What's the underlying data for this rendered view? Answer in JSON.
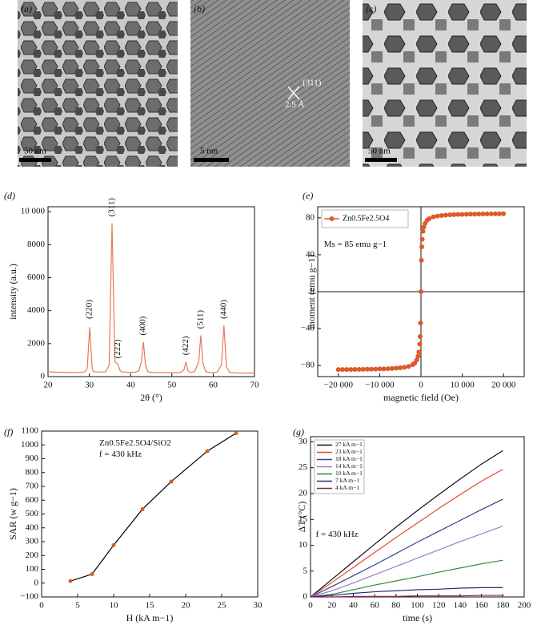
{
  "images": [
    {
      "panel": "(a)",
      "scale_bar": "50 nm"
    },
    {
      "panel": "(b)",
      "scale_bar": "5 nm",
      "annotations": [
        "(311)",
        "2.5 Å"
      ]
    },
    {
      "panel": "(c)",
      "scale_bar": "50 nm"
    }
  ],
  "chart_data": [
    {
      "type": "line",
      "panel": "(d)",
      "xlabel": "2θ (°)",
      "ylabel": "intensity (a.u.)",
      "color": "#e8775f",
      "x": [
        20,
        21,
        22,
        23,
        24,
        25,
        26,
        27,
        28,
        29,
        29.5,
        30.1,
        30.7,
        31,
        32,
        33,
        34,
        34.8,
        35.5,
        36.2,
        36.9,
        37.5,
        38,
        39,
        40,
        41,
        42,
        42.6,
        43.1,
        43.6,
        44.2,
        45,
        46,
        47,
        48,
        49,
        50,
        51,
        52,
        52.9,
        53.4,
        53.9,
        54.5,
        55.5,
        56.5,
        57,
        57.5,
        58.2,
        59,
        60,
        61,
        62,
        62.6,
        63.2,
        64,
        65,
        66,
        67,
        68,
        69,
        70
      ],
      "values": [
        300,
        280,
        260,
        270,
        250,
        260,
        240,
        250,
        260,
        300,
        500,
        3000,
        500,
        300,
        280,
        270,
        300,
        700,
        9300,
        900,
        750,
        350,
        280,
        260,
        250,
        260,
        350,
        900,
        2100,
        700,
        300,
        250,
        240,
        250,
        240,
        230,
        240,
        230,
        250,
        400,
        900,
        350,
        250,
        300,
        900,
        2500,
        800,
        300,
        250,
        240,
        280,
        700,
        3100,
        600,
        250,
        230,
        220,
        220,
        210,
        220,
        200
      ],
      "xlim": [
        20,
        70
      ],
      "xticks": [
        20,
        30,
        40,
        50,
        60,
        70
      ],
      "ylim": [
        0,
        10300
      ],
      "yticks": [
        0,
        2000,
        4000,
        6000,
        8000,
        {
          "value": 10000,
          "label": "10 000"
        }
      ],
      "annotation_rotation": -90,
      "annotations": [
        {
          "text": "(220)",
          "x": 30.1,
          "y": 3500
        },
        {
          "text": "(311)",
          "x": 35.5,
          "y": 9700
        },
        {
          "text": "(222)",
          "x": 37,
          "y": 1100
        },
        {
          "text": "(400)",
          "x": 43.1,
          "y": 2500
        },
        {
          "text": "(422)",
          "x": 53.4,
          "y": 1300
        },
        {
          "text": "(511)",
          "x": 57,
          "y": 2900
        },
        {
          "text": "(440)",
          "x": 62.6,
          "y": 3500
        }
      ]
    },
    {
      "type": "scatter",
      "panel": "(e)",
      "xlabel": "magnetic field (Oe)",
      "ylabel": "moment (emu g−1)",
      "zero_lines": true,
      "legend": "upper left",
      "series": [
        {
          "name": "Zn0.5Fe2.5O4",
          "color": "#dd5a2c",
          "x": [
            -20000,
            -19000,
            -18000,
            -17000,
            -16000,
            -15000,
            -14000,
            -13000,
            -12000,
            -11000,
            -10000,
            -9000,
            -8000,
            -7000,
            -6000,
            -5000,
            -4000,
            -3000,
            -2000,
            -1500,
            -1000,
            -700,
            -500,
            -300,
            -200,
            -100,
            0,
            100,
            200,
            300,
            500,
            700,
            1000,
            1500,
            2000,
            3000,
            4000,
            5000,
            6000,
            7000,
            8000,
            9000,
            10000,
            11000,
            12000,
            13000,
            14000,
            15000,
            16000,
            17000,
            18000,
            19000,
            20000
          ],
          "values": [
            -84.4,
            -84.3,
            -84.3,
            -84.3,
            -84.2,
            -84.2,
            -84.1,
            -84.0,
            -84.0,
            -83.9,
            -83.7,
            -83.6,
            -83.4,
            -83.2,
            -82.9,
            -82.5,
            -81.9,
            -81.0,
            -79.1,
            -77.3,
            -73.9,
            -70.0,
            -65.4,
            -56.7,
            -48.6,
            -34.0,
            0,
            34.0,
            48.6,
            56.7,
            65.4,
            70.0,
            73.9,
            77.3,
            79.1,
            81.0,
            81.9,
            82.5,
            82.9,
            83.2,
            83.4,
            83.6,
            83.7,
            83.9,
            84.0,
            84.0,
            84.1,
            84.2,
            84.2,
            84.3,
            84.3,
            84.3,
            84.4
          ]
        }
      ],
      "xlim": [
        -25000,
        25000
      ],
      "xticks": [
        {
          "value": -20000,
          "label": "−20 000"
        },
        {
          "value": -10000,
          "label": "−10 000"
        },
        0,
        {
          "value": 10000,
          "label": "10 000"
        },
        {
          "value": 20000,
          "label": "20 000"
        }
      ],
      "ylim": [
        -92,
        92
      ],
      "yticks": [
        {
          "value": -80,
          "label": "−80"
        },
        {
          "value": -40,
          "label": "−40"
        },
        0,
        40,
        80
      ],
      "annotations": [
        {
          "text": "Ms = 85 emu g−1",
          "x": -23500,
          "y": 51
        }
      ]
    },
    {
      "type": "line",
      "panel": "(f)",
      "xlabel": "H (kA m−1)",
      "ylabel": "SAR (w g−1)",
      "color": "#000000",
      "marker_color": "#dd5a2c",
      "x": [
        4,
        7,
        10,
        14,
        18,
        23,
        27
      ],
      "values": [
        15,
        65,
        275,
        535,
        735,
        955,
        1085
      ],
      "xlim": [
        0,
        30
      ],
      "xticks": [
        0,
        5,
        10,
        15,
        20,
        25,
        30
      ],
      "ylim": [
        -100,
        1100
      ],
      "yticks": [
        {
          "value": -100,
          "label": "−100"
        },
        0,
        100,
        200,
        300,
        400,
        500,
        600,
        700,
        800,
        900,
        1000,
        1100
      ],
      "annotations": [
        {
          "text": "Zn0.5Fe2.5O4/SiO2",
          "x": 8,
          "y": 1010
        },
        {
          "text": "f = 430 kHz",
          "x": 8,
          "y": 930
        }
      ]
    },
    {
      "type": "line",
      "panel": "(g)",
      "xlabel": "time (s)",
      "ylabel": "ΔT (°C)",
      "legend": "upper left",
      "x": [
        0,
        20,
        40,
        60,
        80,
        100,
        120,
        140,
        160,
        180
      ],
      "series": [
        {
          "name": "27 kA m−1",
          "color": "#111111",
          "values": [
            0,
            3.4,
            6.8,
            10.2,
            13.5,
            16.7,
            19.8,
            22.8,
            25.7,
            28.3
          ]
        },
        {
          "name": "23 kA m−1",
          "color": "#e8472a",
          "values": [
            0,
            2.8,
            5.7,
            8.6,
            11.5,
            14.3,
            17.1,
            19.8,
            22.4,
            24.7
          ]
        },
        {
          "name": "18 kA m−1",
          "color": "#3b3f8f",
          "values": [
            0,
            2.0,
            4.1,
            6.2,
            8.4,
            10.6,
            12.7,
            14.8,
            16.9,
            18.9
          ]
        },
        {
          "name": "14 kA m−1",
          "color": "#a57ac8",
          "values": [
            0,
            1.2,
            2.7,
            4.3,
            5.9,
            7.5,
            9.1,
            10.7,
            12.2,
            13.7
          ]
        },
        {
          "name": "10 kA m−1",
          "color": "#2e8b3e",
          "values": [
            0,
            0.5,
            1.4,
            2.3,
            3.1,
            3.9,
            4.8,
            5.6,
            6.4,
            7.1
          ]
        },
        {
          "name": "7 kA m−1",
          "color": "#2a2a7a",
          "values": [
            0,
            0.3,
            0.7,
            1.0,
            1.2,
            1.4,
            1.5,
            1.7,
            1.8,
            1.8
          ]
        },
        {
          "name": "4 kA m−1",
          "color": "#8b2252",
          "values": [
            0,
            0,
            0.1,
            0.1,
            0.1,
            0.2,
            0.2,
            0.2,
            0.3,
            0.3
          ]
        }
      ],
      "xlim": [
        0,
        200
      ],
      "xticks": [
        0,
        20,
        40,
        60,
        80,
        100,
        120,
        140,
        160,
        180,
        200
      ],
      "ylim": [
        0,
        31
      ],
      "yticks": [
        0,
        5,
        10,
        15,
        20,
        25,
        30
      ],
      "annotations": [
        {
          "text": "f = 430 kHz",
          "x": 5,
          "y": 12
        }
      ]
    }
  ]
}
